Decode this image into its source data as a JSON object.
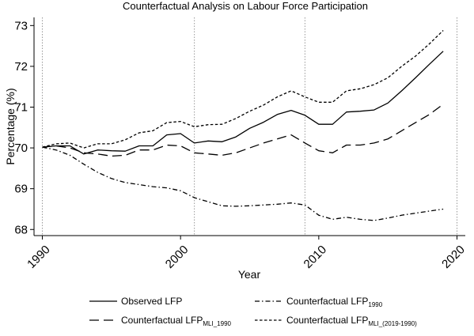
{
  "chart_data": {
    "type": "line",
    "title": "Counterfactual Analysis on Labour Force Participation",
    "xlabel": "Year",
    "ylabel": "Percentage (%)",
    "xlim": [
      1990,
      2020
    ],
    "ylim": [
      68,
      73
    ],
    "x_ticks": [
      "1990",
      "2000",
      "2010",
      "2020"
    ],
    "y_ticks": [
      "68",
      "69",
      "70",
      "71",
      "72",
      "73"
    ],
    "vlines": [
      1990,
      2001,
      2009,
      2020
    ],
    "legend_position": "bottom",
    "x": [
      1990,
      1991,
      1992,
      1993,
      1994,
      1995,
      1996,
      1997,
      1998,
      1999,
      2000,
      2001,
      2002,
      2003,
      2004,
      2005,
      2006,
      2007,
      2008,
      2009,
      2010,
      2011,
      2012,
      2013,
      2014,
      2015,
      2016,
      2017,
      2018,
      2019,
      2020
    ],
    "series": [
      {
        "key": "observed",
        "name": "Observed LFP",
        "sub": "",
        "dash": "solid",
        "values": [
          70.02,
          70.05,
          70.05,
          69.85,
          69.95,
          69.93,
          69.92,
          70.05,
          70.05,
          70.32,
          70.35,
          70.12,
          70.17,
          70.15,
          70.27,
          70.48,
          70.63,
          70.82,
          70.92,
          70.8,
          70.58,
          70.58,
          70.88,
          70.9,
          70.93,
          71.1,
          71.4,
          71.72,
          72.05,
          72.37,
          null
        ]
      },
      {
        "key": "cf1990",
        "name": "Counterfactual LFP",
        "sub": "1990",
        "dash": "dashdot",
        "values": [
          70.02,
          69.95,
          69.82,
          69.6,
          69.4,
          69.25,
          69.15,
          69.1,
          69.05,
          69.02,
          68.95,
          68.78,
          68.68,
          68.58,
          68.57,
          68.58,
          68.6,
          68.62,
          68.65,
          68.6,
          68.35,
          68.25,
          68.3,
          68.25,
          68.22,
          68.28,
          68.35,
          68.4,
          68.45,
          68.5,
          null
        ]
      },
      {
        "key": "mli1990",
        "name": "Counterfactual LFP",
        "sub": "MLI_1990",
        "dash": "longdash",
        "values": [
          70.02,
          70.05,
          70.0,
          69.88,
          69.85,
          69.8,
          69.82,
          69.95,
          69.95,
          70.07,
          70.05,
          69.88,
          69.85,
          69.82,
          69.88,
          70.0,
          70.12,
          70.22,
          70.32,
          70.12,
          69.93,
          69.88,
          70.07,
          70.07,
          70.12,
          70.22,
          70.42,
          70.62,
          70.82,
          71.07,
          null
        ]
      },
      {
        "key": "mli20191990",
        "name": "Counterfactual LFP",
        "sub": "MLI_(2019-1990)",
        "dash": "shortdash",
        "values": [
          70.02,
          70.1,
          70.12,
          70.0,
          70.1,
          70.1,
          70.2,
          70.37,
          70.42,
          70.62,
          70.65,
          70.52,
          70.57,
          70.58,
          70.72,
          70.9,
          71.05,
          71.25,
          71.4,
          71.25,
          71.12,
          71.12,
          71.4,
          71.45,
          71.55,
          71.72,
          72.0,
          72.25,
          72.55,
          72.88,
          null
        ]
      }
    ]
  }
}
